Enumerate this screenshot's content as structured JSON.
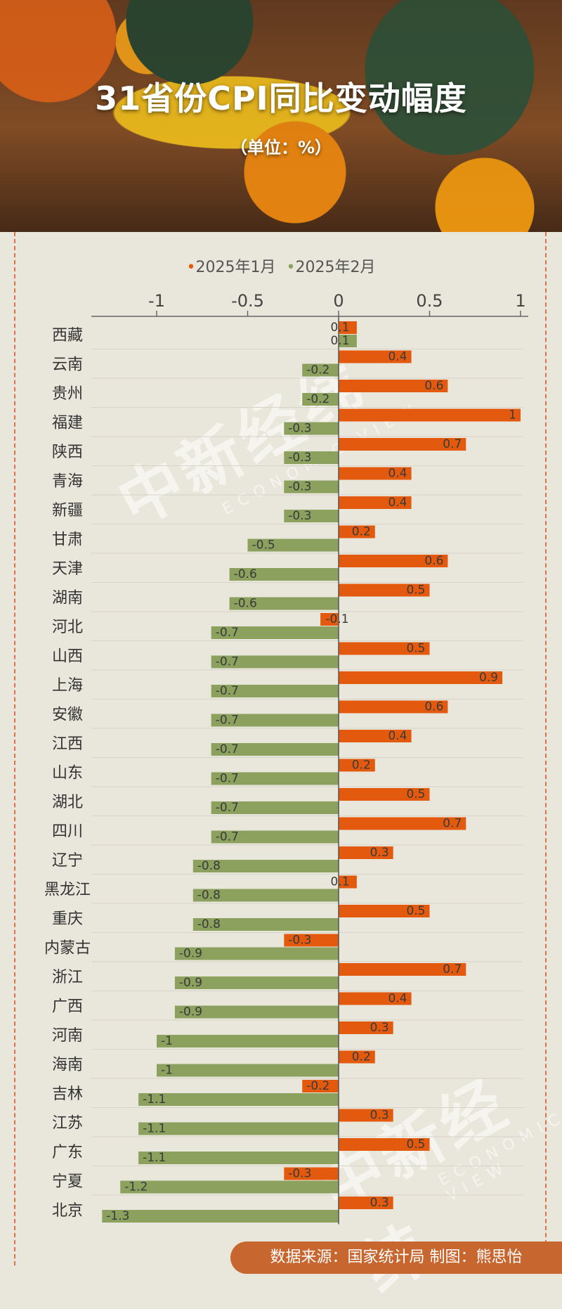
{
  "header": {
    "title": "31省份CPI同比变动幅度",
    "subtitle": "（单位：%）"
  },
  "legend": {
    "series1": "2025年1月",
    "series2": "2025年2月"
  },
  "watermark": {
    "text": "中新经纬",
    "sub": "ECONOMIC VIEW"
  },
  "footer": {
    "text": "数据来源：国家统计局  制图：熊思怡"
  },
  "colors": {
    "jan": "#e35a0e",
    "feb": "#8ba15d",
    "axis": "#666666"
  },
  "chart_data": {
    "type": "bar",
    "orientation": "horizontal",
    "title": "31省份CPI同比变动幅度",
    "unit": "%",
    "xlim": [
      -1.35,
      1.05
    ],
    "x_ticks": [
      -1,
      -0.5,
      0,
      0.5,
      1
    ],
    "x_tick_labels": [
      "-1",
      "-0.5",
      "0",
      "0.5",
      "1"
    ],
    "categories": [
      "西藏",
      "云南",
      "贵州",
      "福建",
      "陕西",
      "青海",
      "新疆",
      "甘肃",
      "天津",
      "湖南",
      "河北",
      "山西",
      "上海",
      "安徽",
      "江西",
      "山东",
      "湖北",
      "四川",
      "辽宁",
      "黑龙江",
      "重庆",
      "内蒙古",
      "浙江",
      "广西",
      "河南",
      "海南",
      "吉林",
      "江苏",
      "广东",
      "宁夏",
      "北京"
    ],
    "series": [
      {
        "name": "2025年1月",
        "values": [
          0.1,
          0.4,
          0.6,
          1,
          0.7,
          0.4,
          0.4,
          0.2,
          0.6,
          0.5,
          -0.1,
          0.5,
          0.9,
          0.6,
          0.4,
          0.2,
          0.5,
          0.7,
          0.3,
          0.1,
          0.5,
          -0.3,
          0.7,
          0.4,
          0.3,
          0.2,
          -0.2,
          0.3,
          0.5,
          -0.3,
          0.3
        ]
      },
      {
        "name": "2025年2月",
        "values": [
          0.1,
          -0.2,
          -0.2,
          -0.3,
          -0.3,
          -0.3,
          -0.3,
          -0.5,
          -0.6,
          -0.6,
          -0.7,
          -0.7,
          -0.7,
          -0.7,
          -0.7,
          -0.7,
          -0.7,
          -0.7,
          -0.8,
          -0.8,
          -0.8,
          -0.9,
          -0.9,
          -0.9,
          -1,
          -1,
          -1.1,
          -1.1,
          -1.1,
          -1.2,
          -1.3
        ]
      }
    ],
    "legend_position": "top",
    "grid": false
  }
}
